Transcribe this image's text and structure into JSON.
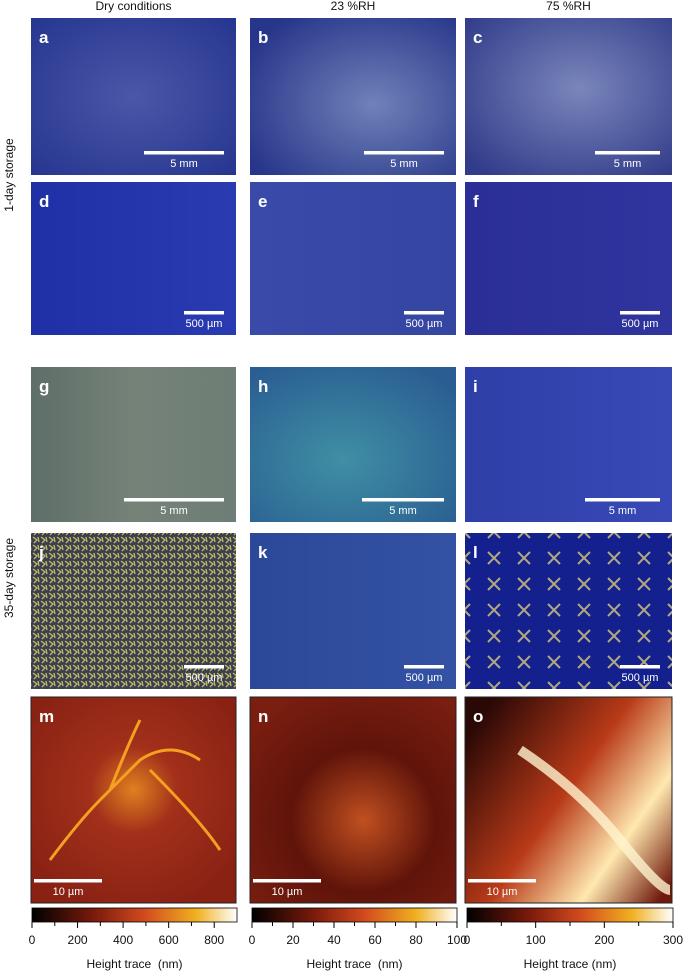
{
  "column_headers": [
    "Dry conditions",
    "23 %RH",
    "75 %RH"
  ],
  "row_labels": [
    "1-day storage",
    "35-day storage"
  ],
  "panels": [
    {
      "letter": "a",
      "scale_bar": "5 mm"
    },
    {
      "letter": "b",
      "scale_bar": "5 mm"
    },
    {
      "letter": "c",
      "scale_bar": "5 mm"
    },
    {
      "letter": "d",
      "scale_bar": "500 µm"
    },
    {
      "letter": "e",
      "scale_bar": "500 µm"
    },
    {
      "letter": "f",
      "scale_bar": "500 µm"
    },
    {
      "letter": "g",
      "scale_bar": "5 mm"
    },
    {
      "letter": "h",
      "scale_bar": "5 mm"
    },
    {
      "letter": "i",
      "scale_bar": "5 mm"
    },
    {
      "letter": "j",
      "scale_bar": "500 µm"
    },
    {
      "letter": "k",
      "scale_bar": "500 µm"
    },
    {
      "letter": "l",
      "scale_bar": "500 µm"
    },
    {
      "letter": "m",
      "scale_bar": "10 µm"
    },
    {
      "letter": "n",
      "scale_bar": "10 µm"
    },
    {
      "letter": "o",
      "scale_bar": "10 µm"
    }
  ],
  "colorbars": [
    {
      "lim": [
        0,
        900
      ],
      "ticks": [
        0,
        200,
        400,
        600,
        800
      ],
      "minor_ticks": [
        100,
        300,
        500,
        700
      ],
      "label": "Height trace  (nm)"
    },
    {
      "lim": [
        0,
        100
      ],
      "ticks": [
        0,
        20,
        40,
        60,
        80,
        100
      ],
      "minor_ticks": [
        10,
        30,
        50,
        70,
        90
      ],
      "label": "Height trace  (nm)"
    },
    {
      "lim": [
        0,
        300
      ],
      "ticks": [
        0,
        100,
        200,
        300
      ],
      "minor_ticks": [
        50,
        150,
        250
      ],
      "label": "Height trace (nm)"
    }
  ]
}
